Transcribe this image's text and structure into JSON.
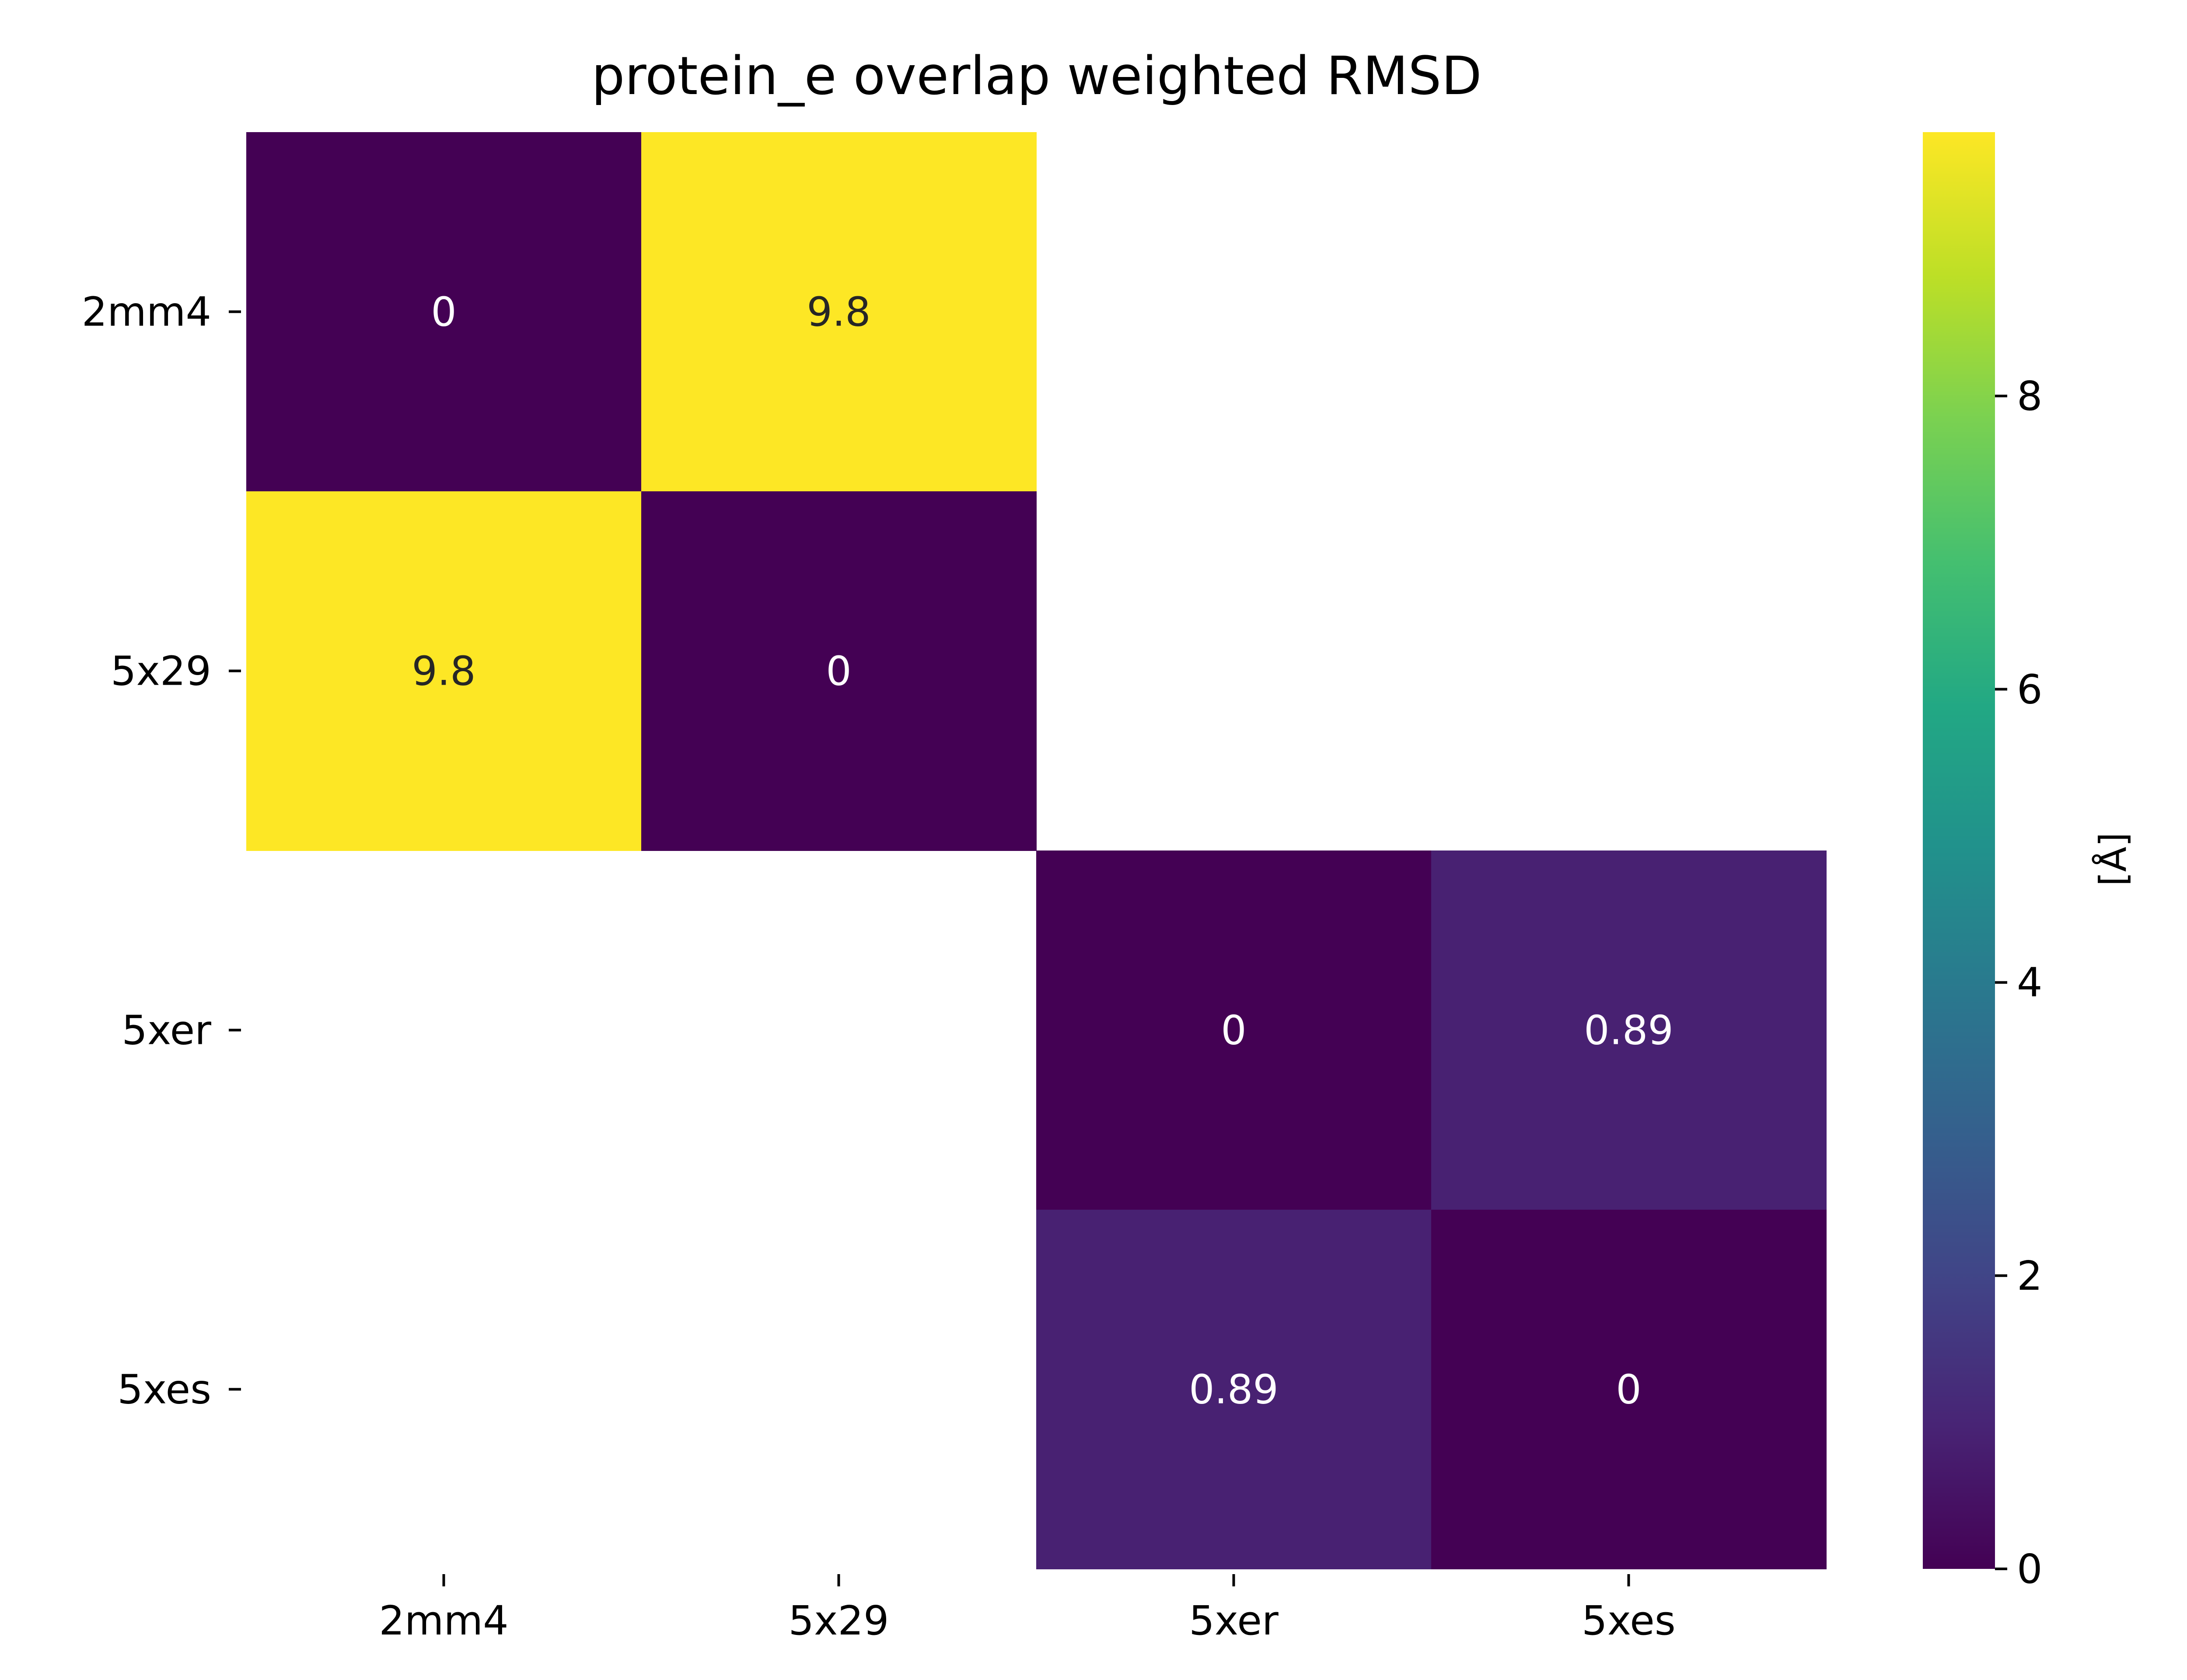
{
  "chart_data": {
    "type": "heatmap",
    "title": "protein_e overlap weighted RMSD",
    "xlabel": "",
    "ylabel": "",
    "x_categories": [
      "2mm4",
      "5x29",
      "5xer",
      "5xes"
    ],
    "y_categories": [
      "2mm4",
      "5x29",
      "5xer",
      "5xes"
    ],
    "values": [
      [
        0,
        9.8,
        null,
        null
      ],
      [
        9.8,
        0,
        null,
        null
      ],
      [
        null,
        null,
        0,
        0.89
      ],
      [
        null,
        null,
        0.89,
        0
      ]
    ],
    "annotations": [
      [
        "0",
        "9.8",
        "",
        ""
      ],
      [
        "9.8",
        "0",
        "",
        ""
      ],
      [
        "",
        "",
        "0",
        "0.89"
      ],
      [
        "",
        "",
        "0.89",
        "0"
      ]
    ],
    "colormap": "viridis",
    "colorbar": {
      "label": "[Å]",
      "range": [
        0,
        9.8
      ],
      "ticks": [
        0,
        2,
        4,
        6,
        8
      ],
      "tick_labels": [
        "0",
        "2",
        "4",
        "6",
        "8"
      ]
    },
    "grid": false,
    "legend": "none"
  },
  "colors": {
    "background": "#ffffff",
    "text": "#000000",
    "annotation_light": "#ffffff",
    "annotation_dark": "#262626"
  }
}
